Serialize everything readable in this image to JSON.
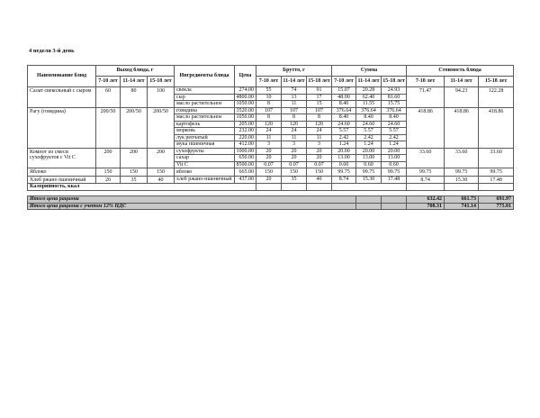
{
  "page": {
    "title": "4 неделя 3-й день"
  },
  "colors": {
    "totals_bg": "#c8c8c8",
    "border": "#5a5a5a"
  },
  "table": {
    "headers": {
      "name": "Наименование блюд",
      "output": "Выход блюда, г",
      "ingredients": "Ингредиенты блюда",
      "price": "Цена",
      "brutto": "Брутто, г",
      "sum": "Сумма",
      "cost": "Стоимость блюда",
      "ages": [
        "7-10 лет",
        "11-14 лет",
        "15-18 лет"
      ]
    },
    "dishes": [
      {
        "name": "Салат свекольный с сыром",
        "output": [
          "60",
          "80",
          "100"
        ],
        "cost": [
          "71.47",
          "94.23",
          "122.28"
        ],
        "ingredients": [
          {
            "name": "свекла",
            "price": "274.00",
            "brutto": [
              "55",
              "74",
              "91"
            ],
            "sum": [
              "15.07",
              "20.28",
              "24.93"
            ]
          },
          {
            "name": "сыр",
            "price": "4800.00",
            "brutto": [
              "10",
              "13",
              "17"
            ],
            "sum": [
              "48.00",
              "62.40",
              "81.60"
            ]
          },
          {
            "name": "масло растительное",
            "price": "1050.00",
            "brutto": [
              "8",
              "11",
              "15"
            ],
            "sum": [
              "8.40",
              "11.55",
              "15.75"
            ]
          }
        ]
      },
      {
        "name": "Рагу (говядина)",
        "output": [
          "200/50",
          "200/50",
          "200/50"
        ],
        "cost": [
          "418.86",
          "418.86",
          "418.86"
        ],
        "ingredients": [
          {
            "name": "говядина",
            "price": "3520.00",
            "brutto": [
              "107",
              "107",
              "107"
            ],
            "sum": [
              "376.64",
              "376.64",
              "376.64"
            ]
          },
          {
            "name": "масло растительное",
            "price": "1050.00",
            "brutto": [
              "8",
              "8",
              "8"
            ],
            "sum": [
              "8.40",
              "8.40",
              "8.40"
            ]
          },
          {
            "name": "картофель",
            "price": "205.00",
            "brutto": [
              "120",
              "120",
              "120"
            ],
            "sum": [
              "24.60",
              "24.60",
              "24.60"
            ]
          },
          {
            "name": "морковь",
            "price": "232.00",
            "brutto": [
              "24",
              "24",
              "24"
            ],
            "sum": [
              "5.57",
              "5.57",
              "5.57"
            ]
          },
          {
            "name": "лук репчатый",
            "price": "220.00",
            "brutto": [
              "11",
              "11",
              "11"
            ],
            "sum": [
              "2.42",
              "2.42",
              "2.42"
            ]
          },
          {
            "name": "мука пшеничная",
            "price": "412.00",
            "brutto": [
              "3",
              "3",
              "3"
            ],
            "sum": [
              "1.24",
              "1.24",
              "1.24"
            ]
          }
        ]
      },
      {
        "name": "Компот из смеси сухофруктов с Vit C",
        "output": [
          "200",
          "200",
          "200"
        ],
        "cost": [
          "33.60",
          "33.60",
          "33.60"
        ],
        "ingredients": [
          {
            "name": "сухофрукты",
            "price": "1000.00",
            "brutto": [
              "20",
              "20",
              "20"
            ],
            "sum": [
              "20.00",
              "20.00",
              "20.00"
            ]
          },
          {
            "name": "сахар",
            "price": "650.00",
            "brutto": [
              "20",
              "20",
              "20"
            ],
            "sum": [
              "13.00",
              "13.00",
              "13.00"
            ]
          },
          {
            "name": "Vit C",
            "price": "8500.00",
            "brutto": [
              "0.07",
              "0.07",
              "0.07"
            ],
            "sum": [
              "0.60",
              "0.60",
              "0.60"
            ]
          }
        ]
      },
      {
        "name": "Яблоко",
        "output": [
          "150",
          "150",
          "150"
        ],
        "cost": [
          "99.75",
          "99.75",
          "99.75"
        ],
        "ingredients": [
          {
            "name": "яблоко",
            "price": "665.00",
            "brutto": [
              "150",
              "150",
              "150"
            ],
            "sum": [
              "99.75",
              "99.75",
              "99.75"
            ]
          }
        ]
      },
      {
        "name": "Хлеб ржано пшеничный",
        "output": [
          "20",
          "35",
          "40"
        ],
        "cost": [
          "8.74",
          "15.30",
          "17.48"
        ],
        "ingredients": [
          {
            "name": "хлеб ржано-пшеничный",
            "price": "437.00",
            "brutto": [
              "20",
              "35",
              "40"
            ],
            "sum": [
              "8.74",
              "15.30",
              "17.48"
            ]
          }
        ]
      }
    ],
    "calories_label": "Калорийность, ккал"
  },
  "totals": [
    {
      "label": "Итого цена рациона",
      "values": [
        "632.42",
        "661.73",
        "691.97"
      ]
    },
    {
      "label": "Итого цена рациона с учетом 12% НДС",
      "values": [
        "708.31",
        "741.14",
        "775.01"
      ]
    }
  ]
}
